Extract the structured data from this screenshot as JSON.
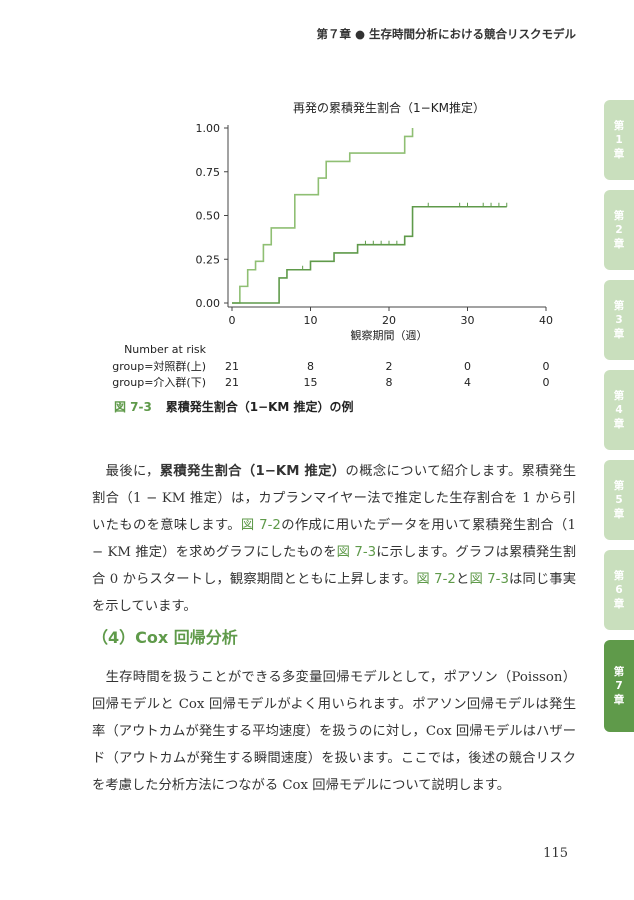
{
  "header": {
    "text": "第７章 ● 生存時間分析における競合リスクモデル"
  },
  "tabs": [
    {
      "label": "第\n1\n章",
      "active": false
    },
    {
      "label": "第\n2\n章",
      "active": false
    },
    {
      "label": "第\n3\n章",
      "active": false
    },
    {
      "label": "第\n4\n章",
      "active": false
    },
    {
      "label": "第\n5\n章",
      "active": false
    },
    {
      "label": "第\n6\n章",
      "active": false
    },
    {
      "label": "第\n7\n章",
      "active": true
    }
  ],
  "chart_data": {
    "type": "line",
    "title": "再発の累積発生割合（1−KM推定）",
    "xlabel": "観察期間（週）",
    "ylabel": "",
    "xlim": [
      0,
      40
    ],
    "ylim": [
      0,
      1
    ],
    "xticks": [
      0,
      10,
      20,
      30,
      40
    ],
    "yticks": [
      "0.00",
      "0.25",
      "0.50",
      "0.75",
      "1.00"
    ],
    "series": [
      {
        "name": "対照群(上)",
        "color": "#8fbf73",
        "x": [
          0,
          1,
          2,
          3,
          4,
          5,
          8,
          11,
          12,
          15,
          22,
          23
        ],
        "y": [
          0.0,
          0.095,
          0.19,
          0.238,
          0.333,
          0.429,
          0.619,
          0.714,
          0.809,
          0.857,
          0.952,
          1.0
        ]
      },
      {
        "name": "介入群(下)",
        "color": "#5f9a4a",
        "x": [
          0,
          6,
          7,
          10,
          13,
          16,
          22,
          23
        ],
        "y": [
          0.0,
          0.143,
          0.19,
          0.238,
          0.286,
          0.333,
          0.381,
          0.55
        ],
        "censor": [
          9,
          17,
          18,
          19,
          20,
          21,
          25,
          29,
          30,
          32,
          33,
          34,
          35
        ],
        "end_x": 35
      }
    ],
    "risk_table": {
      "heading": "Number at risk",
      "rows": [
        {
          "label": "group=対照群(上)",
          "values": [
            "21",
            "8",
            "2",
            "0",
            "0"
          ]
        },
        {
          "label": "group=介入群(下)",
          "values": [
            "21",
            "15",
            "8",
            "4",
            "0"
          ]
        }
      ]
    }
  },
  "caption": {
    "number": "図 7-3",
    "title": "累積発生割合（1−KM 推定）の例"
  },
  "para1": {
    "t1": "最後に，",
    "b1": "累積発生割合（1−KM 推定）",
    "t2": "の概念について紹介します。累積発生割合（1 − KM 推定）は，カプランマイヤー法で推定した生存割合を 1 から引いたものを意味します。",
    "r1": "図 7-2",
    "t3": "の作成に用いたデータを用いて累積発生割合（1 − KM 推定）を求めグラフにしたものを",
    "r2": "図 7-3",
    "t4": "に示します。グラフは累積発生割合 0 からスタートし，観察期間とともに上昇します。",
    "r3": "図 7-2",
    "t5": "と",
    "r4": "図 7-3",
    "t6": "は同じ事実を示しています。"
  },
  "section": {
    "title": "（4）Cox 回帰分析"
  },
  "para2": {
    "text": "生存時間を扱うことができる多変量回帰モデルとして，ポアソン（Poisson）回帰モデルと Cox 回帰モデルがよく用いられます。ポアソン回帰モデルは発生率（アウトカムが発生する平均速度）を扱うのに対し，Cox 回帰モデルはハザード（アウトカムが発生する瞬間速度）を扱います。ここでは，後述の競合リスクを考慮した分析方法につながる Cox 回帰モデルについて説明します。"
  },
  "page_number": "115"
}
